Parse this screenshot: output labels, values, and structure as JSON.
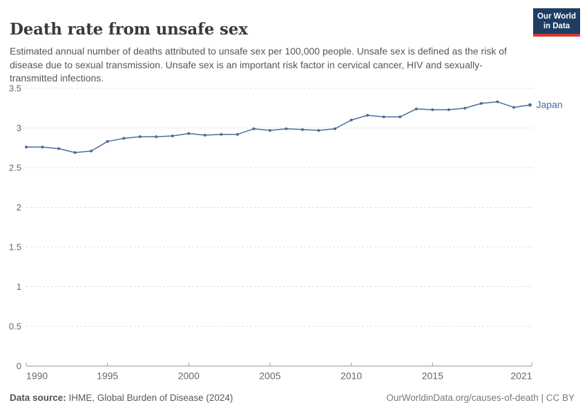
{
  "header": {
    "title": "Death rate from unsafe sex",
    "subtitle": "Estimated annual number of deaths attributed to unsafe sex per 100,000 people. Unsafe sex is defined as the risk of disease due to sexual transmission. Unsafe sex is an important risk factor in cervical cancer, HIV and sexually-transmitted infections.",
    "logo": {
      "line1": "Our World",
      "line2": "in Data"
    }
  },
  "chart_data": {
    "type": "line",
    "title": "Death rate from unsafe sex",
    "xlabel": "",
    "ylabel": "",
    "x": [
      1990,
      1991,
      1992,
      1993,
      1994,
      1995,
      1996,
      1997,
      1998,
      1999,
      2000,
      2001,
      2002,
      2003,
      2004,
      2005,
      2006,
      2007,
      2008,
      2009,
      2010,
      2011,
      2012,
      2013,
      2014,
      2015,
      2016,
      2017,
      2018,
      2019,
      2020,
      2021
    ],
    "series": [
      {
        "name": "Japan",
        "color": "#4c6a9c",
        "values": [
          2.76,
          2.76,
          2.74,
          2.69,
          2.71,
          2.83,
          2.87,
          2.89,
          2.89,
          2.9,
          2.93,
          2.91,
          2.92,
          2.92,
          2.99,
          2.97,
          2.99,
          2.98,
          2.97,
          2.99,
          3.1,
          3.16,
          3.14,
          3.14,
          3.24,
          3.23,
          3.23,
          3.25,
          3.31,
          3.33,
          3.26,
          3.29
        ]
      }
    ],
    "xlim": [
      1990,
      2021
    ],
    "ylim": [
      0,
      3.5
    ],
    "xticks": [
      1990,
      1995,
      2000,
      2005,
      2010,
      2015,
      2021
    ],
    "yticks": [
      0,
      0.5,
      1,
      1.5,
      2,
      2.5,
      3,
      3.5
    ],
    "grid": "horizontal dashed",
    "legend_position": "end-of-line label"
  },
  "colors": {
    "line": "#4c6a9c",
    "grid": "#dddddd",
    "axis": "#9a9a9a",
    "tick_text": "#676767"
  },
  "footer": {
    "source_label": "Data source:",
    "source_text": " IHME, Global Burden of Disease (2024)",
    "credit": "OurWorldinData.org/causes-of-death | CC BY"
  }
}
